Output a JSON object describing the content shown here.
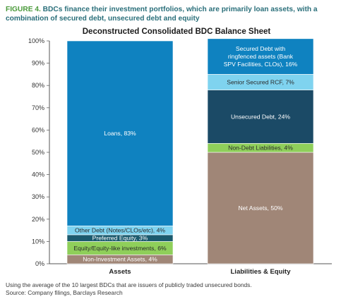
{
  "figure": {
    "label": "FIGURE 4.",
    "text": "BDCs finance their investment portfolios, which are primarily loan assets, with a combination of secured debt, unsecured debt and equity"
  },
  "footnote": {
    "line1": "Using the average of the 10 largest BDCs that are issuers of publicly traded unsecured bonds.",
    "line2": "Source: Company filings, Barclays Research"
  },
  "chart_data": {
    "type": "bar",
    "stacked": true,
    "title": "Deconstructed Consolidated BDC Balance Sheet",
    "categories": [
      "Assets",
      "Liabilities & Equity"
    ],
    "ylim": [
      0,
      100
    ],
    "yticks": [
      "0%",
      "10%",
      "20%",
      "30%",
      "40%",
      "50%",
      "60%",
      "70%",
      "80%",
      "90%",
      "100%"
    ],
    "grid": false,
    "stacks": [
      {
        "category": "Assets",
        "segments": [
          {
            "label": "Non-Investment Assets, 4%",
            "value": 4,
            "color": "#a08677"
          },
          {
            "label": "Equity/Equity-like investments, 6%",
            "value": 6,
            "color": "#8fcf5a"
          },
          {
            "label": "Preferred Equity, 3%",
            "value": 3,
            "color": "#1b5a6e"
          },
          {
            "label": "Other Debt (Notes/CLOs/etc), 4%",
            "value": 4,
            "color": "#7fd3ef"
          },
          {
            "label": "Loans, 83%",
            "value": 83,
            "color": "#0f82c0"
          }
        ]
      },
      {
        "category": "Liabilities & Equity",
        "segments": [
          {
            "label": "Net Assets, 50%",
            "value": 50,
            "color": "#a08677"
          },
          {
            "label": "Non-Debt Liabilities, 4%",
            "value": 4,
            "color": "#8fcf5a"
          },
          {
            "label": "Unsecured Debt, 24%",
            "value": 24,
            "color": "#1b4a66"
          },
          {
            "label": "Senior Secured RCF, 7%",
            "value": 7,
            "color": "#7fd3ef"
          },
          {
            "label": "Secured Debt with ringfenced assets (Bank SPV Facilities, CLOs), 16%",
            "value": 16,
            "color": "#0f82c0",
            "lines": [
              "Secured Debt with",
              "ringfenced assets (Bank",
              "SPV Facilities, CLOs), 16%"
            ]
          }
        ]
      }
    ]
  }
}
